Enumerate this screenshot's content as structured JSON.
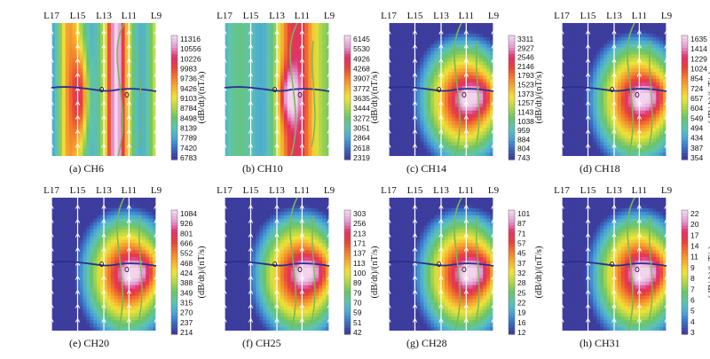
{
  "chart_data": [
    {
      "type": "heatmap",
      "caption": "(a) CH6",
      "line_labels": [
        "L17",
        "L15",
        "L13",
        "L11",
        "L9"
      ],
      "colorbar_label": "(dB/dt)/(nT/s)",
      "colorbar_ticks": [
        "11316",
        "10556",
        "10226",
        "9983",
        "9736",
        "9426",
        "9103",
        "8784",
        "8498",
        "8139",
        "7789",
        "7420",
        "6783"
      ],
      "value_range": [
        6783,
        11316
      ]
    },
    {
      "type": "heatmap",
      "caption": "(b) CH10",
      "line_labels": [
        "L17",
        "L15",
        "L13",
        "L11",
        "L9"
      ],
      "colorbar_label": "(dB/dt)/(nT/s)",
      "colorbar_ticks": [
        "6145",
        "5530",
        "4926",
        "4268",
        "3907",
        "3772",
        "3635",
        "3444",
        "3272",
        "3051",
        "2864",
        "2618",
        "2319"
      ],
      "value_range": [
        2319,
        6145
      ]
    },
    {
      "type": "heatmap",
      "caption": "(c) CH14",
      "line_labels": [
        "L17",
        "L15",
        "L13",
        "L11",
        "L9"
      ],
      "colorbar_label": "(dB/dt)/(nT/s)",
      "colorbar_ticks": [
        "3311",
        "2927",
        "2546",
        "2146",
        "1793",
        "1523",
        "1373",
        "1257",
        "1143",
        "1038",
        "959",
        "884",
        "804",
        "743"
      ],
      "value_range": [
        743,
        3311
      ]
    },
    {
      "type": "heatmap",
      "caption": "(d) CH18",
      "line_labels": [
        "L17",
        "L15",
        "L13",
        "L11",
        "L9"
      ],
      "colorbar_label": "(dB/dt)/(nT/s)",
      "colorbar_ticks": [
        "1635",
        "1414",
        "1229",
        "1024",
        "854",
        "724",
        "657",
        "604",
        "549",
        "494",
        "434",
        "387",
        "354"
      ],
      "value_range": [
        354,
        1635
      ]
    },
    {
      "type": "heatmap",
      "caption": "(e) CH20",
      "line_labels": [
        "L17",
        "L15",
        "L13",
        "L11",
        "L9"
      ],
      "colorbar_label": "(dB/dt)/(nT/s)",
      "colorbar_ticks": [
        "1084",
        "926",
        "801",
        "666",
        "552",
        "468",
        "424",
        "388",
        "349",
        "315",
        "270",
        "237",
        "214"
      ],
      "value_range": [
        214,
        1084
      ]
    },
    {
      "type": "heatmap",
      "caption": "(f) CH25",
      "line_labels": [
        "L17",
        "L15",
        "L13",
        "L11",
        "L9"
      ],
      "colorbar_label": "(dB/dt)/(nT/s)",
      "colorbar_ticks": [
        "303",
        "256",
        "213",
        "171",
        "137",
        "113",
        "100",
        "89",
        "79",
        "70",
        "59",
        "51",
        "42"
      ],
      "value_range": [
        42,
        303
      ]
    },
    {
      "type": "heatmap",
      "caption": "(g) CH28",
      "line_labels": [
        "L17",
        "L15",
        "L13",
        "L11",
        "L9"
      ],
      "colorbar_label": "(dB/dt)/(nT/s)",
      "colorbar_ticks": [
        "101",
        "87",
        "71",
        "57",
        "45",
        "37",
        "32",
        "28",
        "25",
        "22",
        "19",
        "16",
        "12"
      ],
      "value_range": [
        12,
        101
      ]
    },
    {
      "type": "heatmap",
      "caption": "(h) CH31",
      "line_labels": [
        "L17",
        "L15",
        "L13",
        "L11",
        "L9"
      ],
      "colorbar_label": "(dB/dt)/(nT/s)",
      "colorbar_ticks": [
        "22",
        "20",
        "17",
        "14",
        "11",
        "9",
        "8",
        "7",
        "6",
        "5",
        "4",
        "3"
      ],
      "value_range": [
        3,
        22
      ]
    }
  ],
  "colors": {
    "scale": [
      "#3d3d9e",
      "#3a6fc4",
      "#4aa6d8",
      "#5fc4b0",
      "#69c46a",
      "#b2d647",
      "#f0e43a",
      "#f6b030",
      "#f27a2e",
      "#e8413a",
      "#e0306e",
      "#e39ad0",
      "#f2d4ec"
    ],
    "profile_line": "#ffffff",
    "arrow": "#ffffff",
    "section_line": "#2b2f8f",
    "feature_line": "#79b857"
  }
}
